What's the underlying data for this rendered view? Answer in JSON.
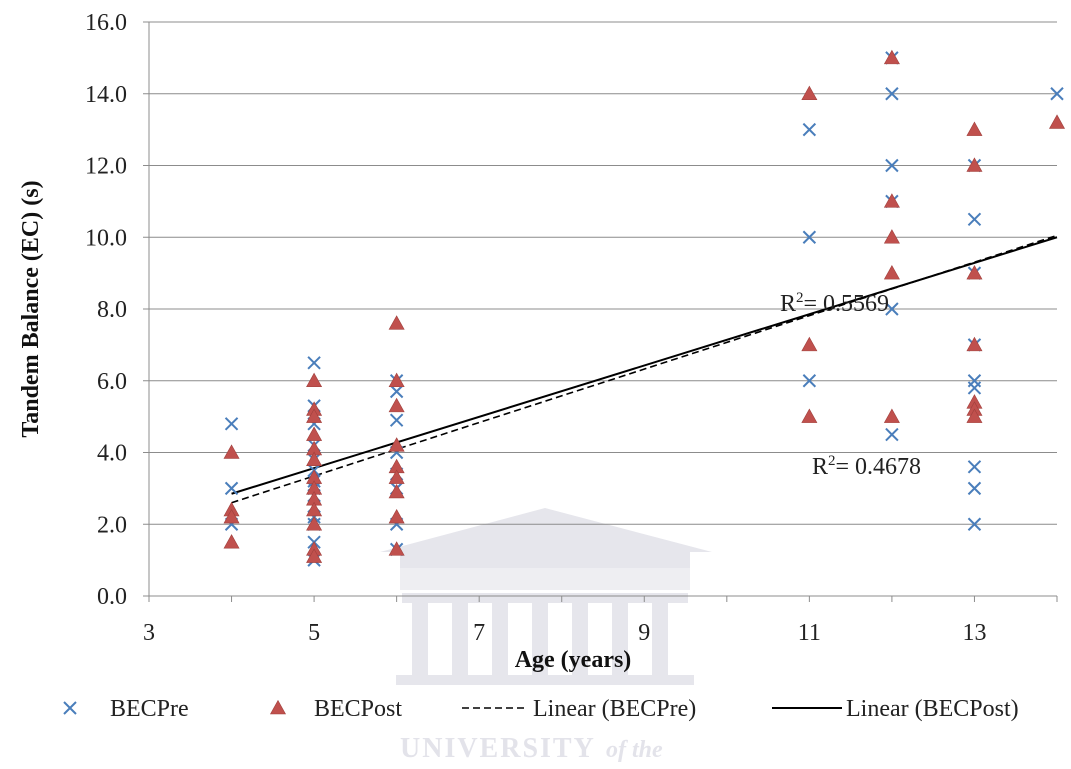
{
  "chart_data": {
    "type": "scatter",
    "title": "",
    "xlabel": "Age (years)",
    "ylabel": "Tandem Balance (EC) (s)",
    "xlim": [
      3,
      14
    ],
    "ylim": [
      0,
      16
    ],
    "x_ticks": [
      "3",
      "5",
      "7",
      "9",
      "11",
      "13"
    ],
    "y_ticks": [
      "0.0",
      "2.0",
      "4.0",
      "6.0",
      "8.0",
      "10.0",
      "12.0",
      "14.0",
      "16.0"
    ],
    "grid": "horizontal",
    "legend_position": "bottom",
    "series": [
      {
        "name": "BECPre",
        "marker": "x",
        "color": "#4a7ebb",
        "points": [
          [
            4,
            4.8
          ],
          [
            4,
            3.0
          ],
          [
            4,
            2.0
          ],
          [
            5,
            6.5
          ],
          [
            5,
            5.3
          ],
          [
            5,
            4.8
          ],
          [
            5,
            4.2
          ],
          [
            5,
            3.8
          ],
          [
            5,
            3.5
          ],
          [
            5,
            3.2
          ],
          [
            5,
            3.0
          ],
          [
            5,
            2.8
          ],
          [
            5,
            2.5
          ],
          [
            5,
            2.2
          ],
          [
            5,
            2.0
          ],
          [
            5,
            1.5
          ],
          [
            5,
            1.0
          ],
          [
            6,
            6.0
          ],
          [
            6,
            5.7
          ],
          [
            6,
            4.9
          ],
          [
            6,
            4.0
          ],
          [
            6,
            3.4
          ],
          [
            6,
            3.0
          ],
          [
            6,
            2.0
          ],
          [
            6,
            1.3
          ],
          [
            11,
            13.0
          ],
          [
            11,
            10.0
          ],
          [
            11,
            6.0
          ],
          [
            12,
            15.0
          ],
          [
            12,
            14.0
          ],
          [
            12,
            12.0
          ],
          [
            12,
            11.0
          ],
          [
            12,
            8.0
          ],
          [
            12,
            4.5
          ],
          [
            13,
            12.0
          ],
          [
            13,
            10.5
          ],
          [
            13,
            9.0
          ],
          [
            13,
            7.0
          ],
          [
            13,
            6.0
          ],
          [
            13,
            5.8
          ],
          [
            13,
            3.6
          ],
          [
            13,
            3.0
          ],
          [
            13,
            2.0
          ],
          [
            14,
            14.0
          ]
        ]
      },
      {
        "name": "BECPost",
        "marker": "triangle",
        "color": "#c0504d",
        "points": [
          [
            4,
            4.0
          ],
          [
            4,
            2.4
          ],
          [
            4,
            2.2
          ],
          [
            4,
            1.5
          ],
          [
            5,
            6.0
          ],
          [
            5,
            5.2
          ],
          [
            5,
            5.0
          ],
          [
            5,
            4.5
          ],
          [
            5,
            4.1
          ],
          [
            5,
            3.8
          ],
          [
            5,
            3.3
          ],
          [
            5,
            3.0
          ],
          [
            5,
            2.7
          ],
          [
            5,
            2.4
          ],
          [
            5,
            2.0
          ],
          [
            5,
            1.3
          ],
          [
            5,
            1.1
          ],
          [
            6,
            7.6
          ],
          [
            6,
            6.0
          ],
          [
            6,
            5.3
          ],
          [
            6,
            4.2
          ],
          [
            6,
            3.6
          ],
          [
            6,
            3.3
          ],
          [
            6,
            2.9
          ],
          [
            6,
            2.2
          ],
          [
            6,
            1.3
          ],
          [
            11,
            14.0
          ],
          [
            11,
            7.0
          ],
          [
            11,
            5.0
          ],
          [
            12,
            15.0
          ],
          [
            12,
            11.0
          ],
          [
            12,
            10.0
          ],
          [
            12,
            9.0
          ],
          [
            12,
            5.0
          ],
          [
            13,
            13.0
          ],
          [
            13,
            12.0
          ],
          [
            13,
            9.0
          ],
          [
            13,
            7.0
          ],
          [
            13,
            5.4
          ],
          [
            13,
            5.2
          ],
          [
            13,
            5.0
          ],
          [
            14,
            13.2
          ]
        ]
      },
      {
        "name": "Linear (BECPre)",
        "type": "line",
        "dash": "dashed",
        "color": "#000000",
        "points": [
          [
            4,
            2.6
          ],
          [
            14,
            10.05
          ]
        ]
      },
      {
        "name": "Linear (BECPost)",
        "type": "line",
        "dash": "solid",
        "color": "#000000",
        "points": [
          [
            4,
            2.85
          ],
          [
            14,
            10.0
          ]
        ]
      }
    ],
    "annotations": [
      {
        "label": "R² = 0.5569",
        "prefix": "R",
        "sup": "2",
        "rest": "= 0.5569"
      },
      {
        "label": "R² = 0.4678",
        "prefix": "R",
        "sup": "2",
        "rest": "= 0.4678"
      }
    ]
  },
  "watermark": {
    "text": "UNIVERSITY",
    "suffix": "of the"
  }
}
